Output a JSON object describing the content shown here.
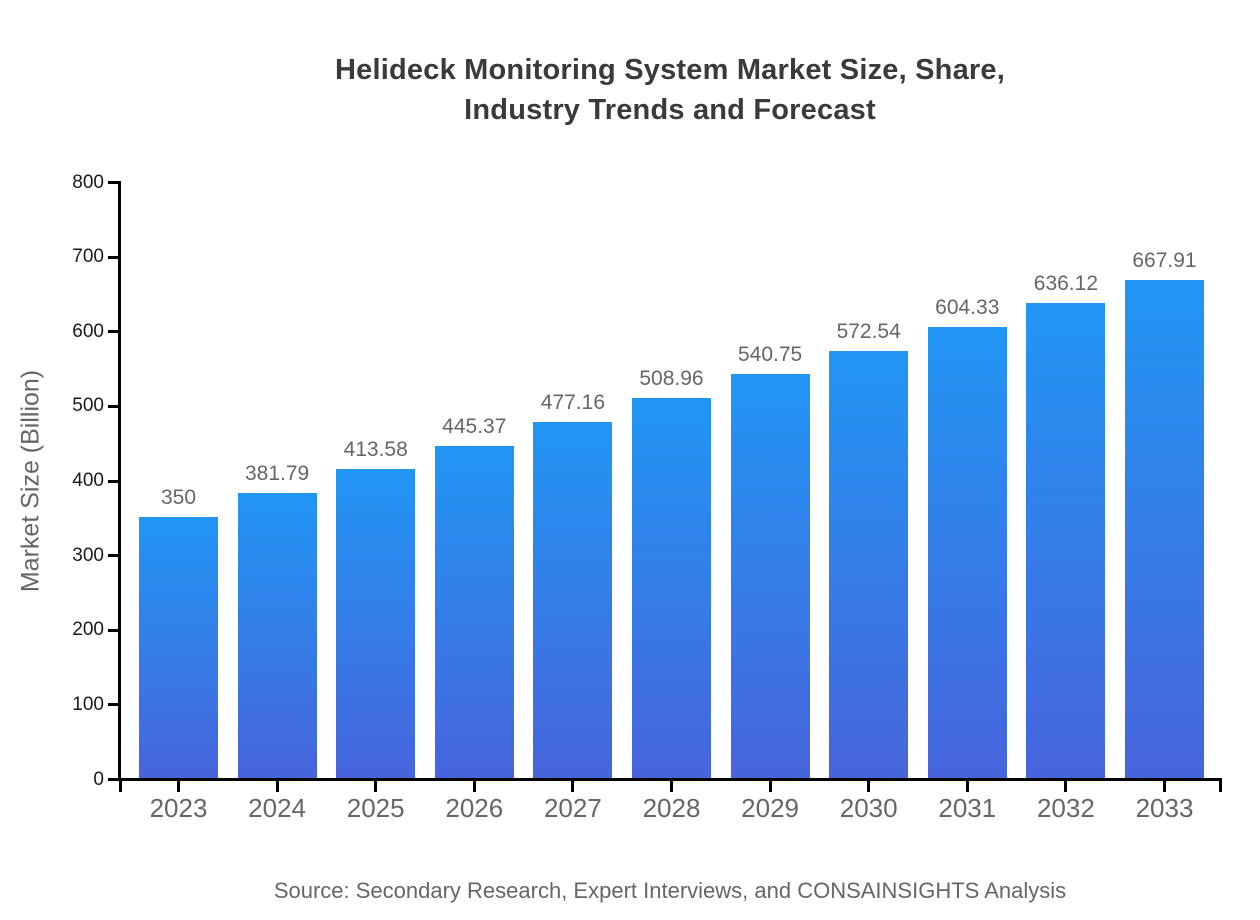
{
  "chart_data": {
    "type": "bar",
    "title": "Helideck Monitoring System Market Size, Share, Industry Trends and Forecast",
    "title_lines": [
      "Helideck Monitoring System Market Size, Share,",
      "Industry Trends and Forecast"
    ],
    "xlabel": "",
    "ylabel": "Market Size (Billion)",
    "ylim": [
      0,
      800
    ],
    "yticks": [
      0,
      100,
      200,
      300,
      400,
      500,
      600,
      700,
      800
    ],
    "categories": [
      "2023",
      "2024",
      "2025",
      "2026",
      "2027",
      "2028",
      "2029",
      "2030",
      "2031",
      "2032",
      "2033"
    ],
    "values": [
      350,
      381.79,
      413.58,
      445.37,
      477.16,
      508.96,
      540.75,
      572.54,
      604.33,
      636.12,
      667.91
    ],
    "value_labels": [
      "350",
      "381.79",
      "413.58",
      "445.37",
      "477.16",
      "508.96",
      "540.75",
      "572.54",
      "604.33",
      "636.12",
      "667.91"
    ],
    "grid": false,
    "legend": "none",
    "colors": {
      "bar_gradient_top": "#2196f4",
      "bar_gradient_bottom": "#4764dd",
      "axis": "#000000",
      "title_text": "#3a3a3a",
      "label_text": "#666666",
      "tick_text": "#1a1a1a",
      "background": "#ffffff"
    }
  },
  "source": {
    "text": "Source: Secondary Research, Expert Interviews, and CONSAINSIGHTS Analysis"
  }
}
